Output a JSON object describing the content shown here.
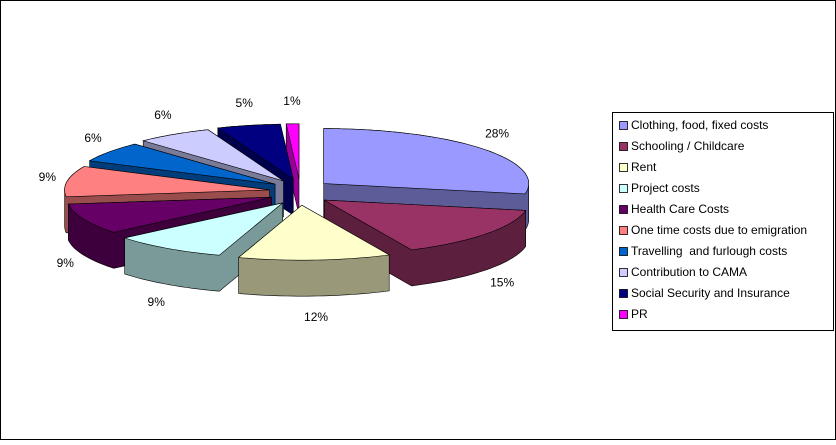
{
  "chart_data": {
    "type": "pie3d",
    "categories": [
      "Clothing, food, fixed costs",
      "Schooling / Childcare",
      "Rent",
      "Project costs",
      "Health Care Costs",
      "One time costs due to emigration",
      "Travelling  and furlough costs",
      "Contribution to CAMA",
      "Social Security and Insurance",
      "PR"
    ],
    "values": [
      28,
      15,
      12,
      9,
      9,
      9,
      6,
      6,
      5,
      1
    ],
    "value_labels": [
      "28%",
      "15%",
      "12%",
      "9%",
      "9%",
      "9%",
      "6%",
      "6%",
      "5%",
      "1%"
    ],
    "colors": [
      "#9999ff",
      "#993366",
      "#ffffcc",
      "#ccffff",
      "#660066",
      "#ff8080",
      "#0066cc",
      "#ccccff",
      "#000080",
      "#ff00ff"
    ],
    "legend": "right"
  }
}
